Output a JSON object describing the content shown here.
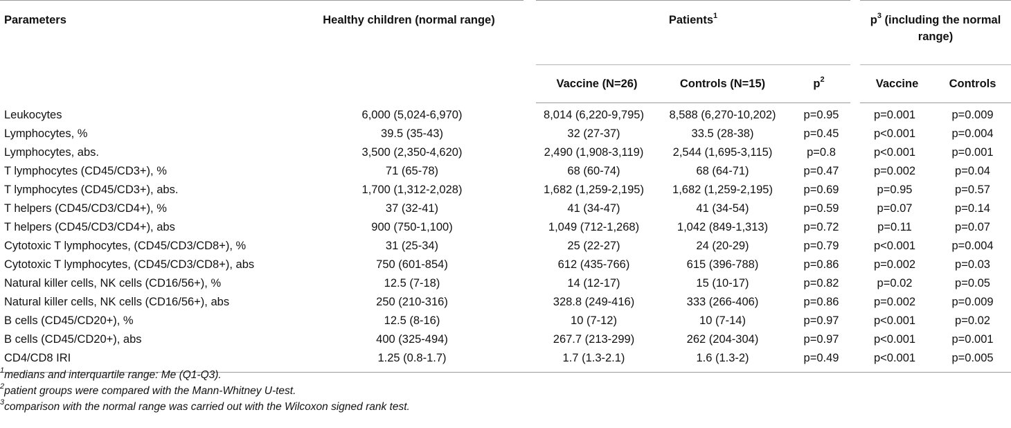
{
  "table": {
    "header": {
      "parameters": "Parameters",
      "healthy": "Healthy children (normal range)",
      "patients": "Patients",
      "patients_sup": "1",
      "p3_prefix": "p",
      "p3_sup": "3",
      "p3_suffix": " (including the normal range)",
      "vaccine": "Vaccine (N=26)",
      "controls": "Controls (N=15)",
      "p2_prefix": "p",
      "p2_sup": "2",
      "p3_vaccine": "Vaccine",
      "p3_controls": "Controls"
    },
    "rows": [
      {
        "param": "Leukocytes",
        "healthy": "6,000 (5,024-6,970)",
        "vaccine": "8,014 (6,220-9,795)",
        "controls": "8,588 (6,270-10,202)",
        "p2": "p=0.95",
        "p3_vaccine": "p=0.001",
        "p3_controls": "p=0.009"
      },
      {
        "param": "Lymphocytes, %",
        "healthy": "39.5 (35-43)",
        "vaccine": "32 (27-37)",
        "controls": "33.5 (28-38)",
        "p2": "p=0.45",
        "p3_vaccine": "p<0.001",
        "p3_controls": "p=0.004"
      },
      {
        "param": "Lymphocytes, abs.",
        "healthy": "3,500 (2,350-4,620)",
        "vaccine": "2,490 (1,908-3,119)",
        "controls": "2,544 (1,695-3,115)",
        "p2": "p=0.8",
        "p3_vaccine": "p<0.001",
        "p3_controls": "p=0.001"
      },
      {
        "param": "T lymphocytes (CD45/CD3+), %",
        "healthy": "71 (65-78)",
        "vaccine": "68 (60-74)",
        "controls": "68 (64-71)",
        "p2": "p=0.47",
        "p3_vaccine": "p=0.002",
        "p3_controls": "p=0.04"
      },
      {
        "param": "T lymphocytes (CD45/CD3+), abs.",
        "healthy": "1,700 (1,312-2,028)",
        "vaccine": "1,682 (1,259-2,195)",
        "controls": "1,682 (1,259-2,195)",
        "p2": "p=0.69",
        "p3_vaccine": "p=0.95",
        "p3_controls": "p=0.57"
      },
      {
        "param": "T helpers (CD45/CD3/CD4+), %",
        "healthy": "37 (32-41)",
        "vaccine": "41 (34-47)",
        "controls": "41 (34-54)",
        "p2": "p=0.59",
        "p3_vaccine": "p=0.07",
        "p3_controls": "p=0.14"
      },
      {
        "param": "T helpers (CD45/CD3/CD4+), abs",
        "healthy": "900 (750-1,100)",
        "vaccine": "1,049 (712-1,268)",
        "controls": "1,042 (849-1,313)",
        "p2": "p=0.72",
        "p3_vaccine": "p=0.11",
        "p3_controls": "p=0.07"
      },
      {
        "param": "Cytotoxic T lymphocytes, (CD45/CD3/CD8+), %",
        "healthy": "31 (25-34)",
        "vaccine": "25 (22-27)",
        "controls": "24 (20-29)",
        "p2": "p=0.79",
        "p3_vaccine": "p<0.001",
        "p3_controls": "p=0.004"
      },
      {
        "param": "Cytotoxic T lymphocytes, (CD45/CD3/CD8+), abs",
        "healthy": "750 (601-854)",
        "vaccine": "612 (435-766)",
        "controls": "615 (396-788)",
        "p2": "p=0.86",
        "p3_vaccine": "p=0.002",
        "p3_controls": "p=0.03"
      },
      {
        "param": "Natural killer cells, NK cells (CD16/56+), %",
        "healthy": "12.5 (7-18)",
        "vaccine": "14 (12-17)",
        "controls": "15 (10-17)",
        "p2": "p=0.82",
        "p3_vaccine": "p=0.02",
        "p3_controls": "p=0.05"
      },
      {
        "param": "Natural killer cells, NK cells (CD16/56+), abs",
        "healthy": "250 (210-316)",
        "vaccine": "328.8 (249-416)",
        "controls": "333 (266-406)",
        "p2": "p=0.86",
        "p3_vaccine": "p=0.002",
        "p3_controls": "p=0.009"
      },
      {
        "param": "B cells (CD45/CD20+), %",
        "healthy": "12.5 (8-16)",
        "vaccine": "10 (7-12)",
        "controls": "10 (7-14)",
        "p2": "p=0.97",
        "p3_vaccine": "p<0.001",
        "p3_controls": "p=0.02"
      },
      {
        "param": "B cells (CD45/CD20+), abs",
        "healthy": "400 (325-494)",
        "vaccine": "267.7 (213-299)",
        "controls": "262 (204-304)",
        "p2": "p=0.97",
        "p3_vaccine": "p<0.001",
        "p3_controls": "p=0.001"
      },
      {
        "param": "CD4/CD8 IRI",
        "healthy": "1.25 (0.8-1.7)",
        "vaccine": "1.7 (1.3-2.1)",
        "controls": "1.6 (1.3-2)",
        "p2": "p=0.49",
        "p3_vaccine": "p<0.001",
        "p3_controls": "p=0.005"
      }
    ]
  },
  "footnotes": [
    {
      "mark": "1",
      "text": "medians and interquartile range: Me (Q1-Q3)."
    },
    {
      "mark": "2",
      "text": "patient groups were compared with the Mann-Whitney U-test."
    },
    {
      "mark": "3",
      "text": "comparison with the normal range was carried out with the Wilcoxon signed rank test."
    }
  ]
}
